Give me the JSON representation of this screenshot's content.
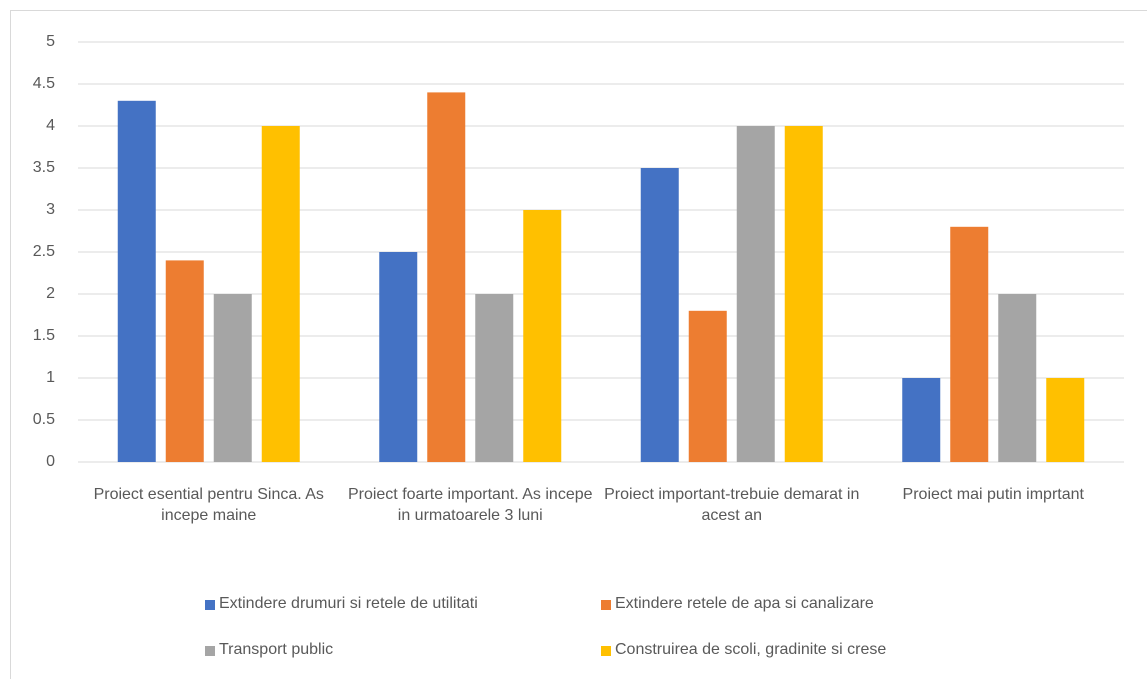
{
  "chart_data": {
    "type": "bar",
    "categories": [
      "Proiect esential pentru Sinca. As incepe maine",
      "Proiect foarte important. As incepe in urmatoarele 3 luni",
      "Proiect important-trebuie demarat in acest an",
      "Proiect mai putin imprtant"
    ],
    "series": [
      {
        "name": "Extindere drumuri si retele de utilitati",
        "color": "#4472c4",
        "values": [
          4.3,
          2.5,
          3.5,
          1
        ]
      },
      {
        "name": "Extindere retele de apa si canalizare",
        "color": "#ed7d31",
        "values": [
          2.4,
          4.4,
          1.8,
          2.8
        ]
      },
      {
        "name": "Transport public",
        "color": "#a5a5a5",
        "values": [
          2,
          2,
          4,
          2
        ]
      },
      {
        "name": "Construirea de scoli, gradinite si crese",
        "color": "#ffc000",
        "values": [
          4,
          3,
          4,
          1
        ]
      }
    ],
    "ylim": [
      0,
      5
    ],
    "yticks": [
      0,
      0.5,
      1,
      1.5,
      2,
      2.5,
      3,
      3.5,
      4,
      4.5,
      5
    ],
    "grid": true,
    "legend": "bottom"
  }
}
